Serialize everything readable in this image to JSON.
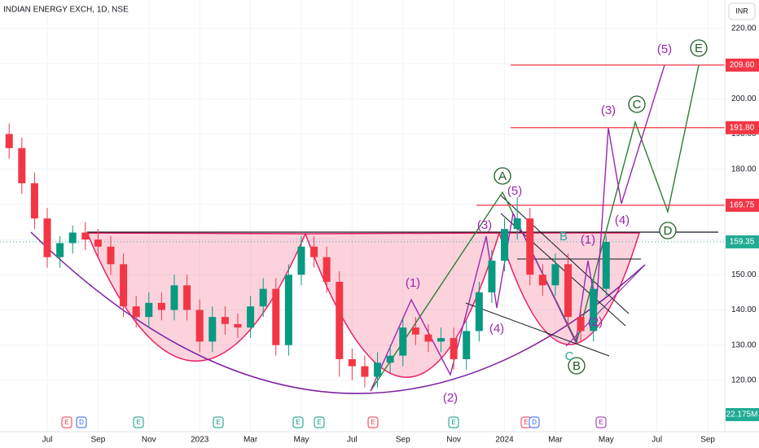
{
  "chart_data": {
    "type": "candlestick",
    "title": "INDIAN ENERGY EXCH, 1D, NSE",
    "currency": "INR",
    "up_color": "#089981",
    "down_color": "#f23645",
    "grid": true,
    "xlim": [
      -1.86,
      26.67
    ],
    "ylim": [
      107.7,
      228.1
    ],
    "xticks": [
      {
        "value": 0,
        "label": "Jul"
      },
      {
        "value": 2,
        "label": "Sep"
      },
      {
        "value": 4,
        "label": "Nov"
      },
      {
        "value": 6,
        "label": "2023"
      },
      {
        "value": 8,
        "label": "Mar"
      },
      {
        "value": 10,
        "label": "May"
      },
      {
        "value": 12,
        "label": "Jul"
      },
      {
        "value": 14,
        "label": "Sep"
      },
      {
        "value": 16,
        "label": "Nov"
      },
      {
        "value": 18,
        "label": "2024"
      },
      {
        "value": 20,
        "label": "Mar"
      },
      {
        "value": 22,
        "label": "May"
      },
      {
        "value": 24,
        "label": "Jul"
      },
      {
        "value": 26,
        "label": "Sep"
      }
    ],
    "yticks": [
      {
        "value": 120,
        "label": "120.00"
      },
      {
        "value": 130,
        "label": "130.00"
      },
      {
        "value": 140,
        "label": "140.00"
      },
      {
        "value": 150,
        "label": "150.00"
      },
      {
        "value": 160,
        "label": "160.00"
      },
      {
        "value": 170,
        "label": "170.00"
      },
      {
        "value": 180,
        "label": "180.00"
      },
      {
        "value": 190,
        "label": "190.00"
      },
      {
        "value": 200,
        "label": "200.00"
      },
      {
        "value": 210,
        "label": "210.00"
      },
      {
        "value": 220,
        "label": "220.00"
      }
    ],
    "x": [
      -1.5,
      -1,
      -0.5,
      0,
      0.5,
      1,
      1.5,
      2,
      2.5,
      3,
      3.5,
      4,
      4.5,
      5,
      5.5,
      6,
      6.5,
      7,
      7.5,
      8,
      8.5,
      9,
      9.5,
      10,
      10.5,
      11,
      11.5,
      12,
      12.5,
      13,
      13.5,
      14,
      14.5,
      15,
      15.5,
      16,
      16.5,
      17,
      17.5,
      18,
      18.5,
      19,
      19.5,
      20,
      20.5,
      21,
      21.5,
      22
    ],
    "open": [
      190,
      186,
      176,
      166,
      155,
      159,
      162,
      160,
      158,
      153,
      141,
      138,
      142,
      140,
      147,
      140,
      131,
      138,
      136,
      135,
      141,
      146,
      130,
      150,
      158,
      155,
      148,
      126,
      124,
      121,
      125,
      127,
      135,
      133,
      131,
      132,
      126,
      134,
      145,
      154,
      163,
      166,
      150,
      147,
      153,
      138,
      134,
      146
    ],
    "high": [
      193,
      189,
      179,
      169,
      161,
      164,
      165,
      163,
      161,
      156,
      144,
      145,
      145,
      150,
      150,
      143,
      141,
      141,
      139,
      144,
      149,
      149,
      153,
      161,
      161,
      158,
      151,
      129,
      127,
      128,
      130,
      138,
      138,
      136,
      135,
      135,
      137,
      148,
      157,
      166,
      172,
      169,
      153,
      156,
      156,
      141,
      149,
      161
    ],
    "low": [
      183,
      173,
      163,
      152,
      152,
      156,
      157,
      155,
      150,
      138,
      135,
      135,
      137,
      137,
      137,
      128,
      128,
      133,
      132,
      132,
      138,
      127,
      127,
      147,
      152,
      145,
      121,
      120,
      118,
      118,
      122,
      124,
      130,
      128,
      128,
      123,
      123,
      131,
      142,
      151,
      160,
      147,
      144,
      144,
      135,
      131,
      131,
      144
    ],
    "close": [
      186,
      176,
      166,
      155,
      159,
      162,
      160,
      158,
      153,
      141,
      138,
      142,
      140,
      147,
      140,
      131,
      138,
      136,
      135,
      141,
      146,
      130,
      150,
      158,
      155,
      148,
      126,
      124,
      121,
      125,
      127,
      135,
      133,
      131,
      132,
      126,
      134,
      145,
      154,
      163,
      166,
      150,
      147,
      153,
      138,
      134,
      146,
      159.35
    ],
    "levels": [
      {
        "value": 209.6,
        "label": "209.60",
        "color": "#f23645"
      },
      {
        "value": 191.8,
        "label": "191.80",
        "color": "#f23645"
      },
      {
        "value": 169.75,
        "label": "169.75",
        "color": "#f23645"
      }
    ],
    "last_price": {
      "value": 159.35,
      "label": "159.35",
      "color": "#22ab94"
    },
    "volume_label": "22.175M",
    "wave_labels": [
      {
        "text": "(1)",
        "color": "#9c27b0",
        "circle": false
      },
      {
        "text": "(2)",
        "color": "#9c27b0",
        "circle": false
      },
      {
        "text": "(3)",
        "color": "#9c27b0",
        "circle": false
      },
      {
        "text": "(4)",
        "color": "#9c27b0",
        "circle": false
      },
      {
        "text": "(5)",
        "color": "#9c27b0",
        "circle": false
      },
      {
        "text": "(1)",
        "color": "#9c27b0",
        "circle": false
      },
      {
        "text": "(2)",
        "color": "#9c27b0",
        "circle": false
      },
      {
        "text": "(3)",
        "color": "#9c27b0",
        "circle": false
      },
      {
        "text": "(4)",
        "color": "#9c27b0",
        "circle": false
      },
      {
        "text": "(5)",
        "color": "#9c27b0",
        "circle": false
      },
      {
        "text": "A",
        "color": "#1b5e20",
        "circle": true
      },
      {
        "text": "B",
        "color": "#1b5e20",
        "circle": true
      },
      {
        "text": "C",
        "color": "#1b5e20",
        "circle": true
      },
      {
        "text": "D",
        "color": "#1b5e20",
        "circle": true
      },
      {
        "text": "E",
        "color": "#1b5e20",
        "circle": true
      },
      {
        "text": "B",
        "color": "#26a69a",
        "circle": false
      },
      {
        "text": "C",
        "color": "#26a69a",
        "circle": false
      }
    ],
    "events": [
      {
        "text": "E",
        "color": "#f23645"
      },
      {
        "text": "D",
        "color": "#2962ff"
      },
      {
        "text": "E",
        "color": "#089981"
      },
      {
        "text": "E",
        "color": "#089981"
      },
      {
        "text": "E",
        "color": "#089981"
      },
      {
        "text": "E",
        "color": "#089981"
      },
      {
        "text": "E",
        "color": "#f23645"
      },
      {
        "text": "E",
        "color": "#089981"
      },
      {
        "text": "E",
        "color": "#f23645"
      },
      {
        "text": "D",
        "color": "#2962ff"
      },
      {
        "text": "E",
        "color": "#9c27b0"
      }
    ]
  }
}
